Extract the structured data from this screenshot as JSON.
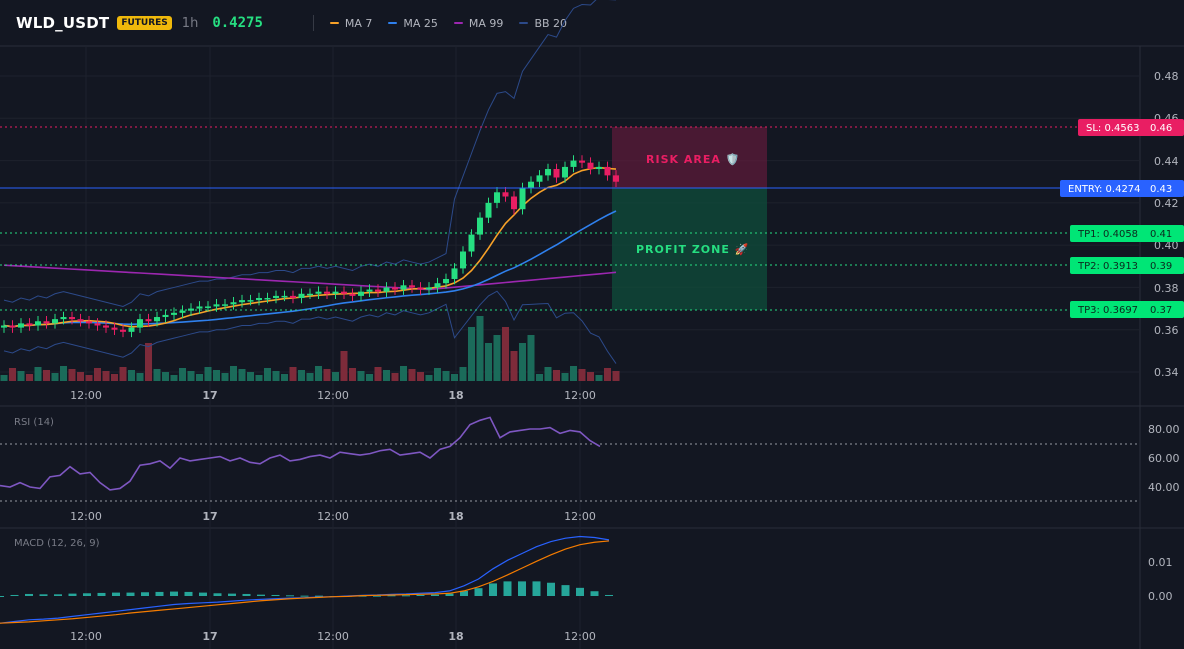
{
  "header": {
    "symbol": "WLD_USDT",
    "badge": "FUTURES",
    "timeframe": "1h",
    "price": "0.4275",
    "legend": [
      {
        "label": "MA 7",
        "color": "#f7a128"
      },
      {
        "label": "MA 25",
        "color": "#2f80ed"
      },
      {
        "label": "MA 99",
        "color": "#9c27b0"
      },
      {
        "label": "BB 20",
        "color": "#2c4a8a"
      }
    ]
  },
  "price_axis": {
    "ticks": [
      "0.48",
      "0.46",
      "0.44",
      "0.42",
      "0.40",
      "0.38",
      "0.36",
      "0.34"
    ],
    "values": [
      0.48,
      0.46,
      0.44,
      0.42,
      0.4,
      0.38,
      0.36,
      0.34
    ]
  },
  "time_axis": {
    "labels": [
      "12:00",
      "17",
      "12:00",
      "18",
      "12:00"
    ]
  },
  "trade_levels": {
    "sl": {
      "label": "SL: 0.4563",
      "short": "0.46",
      "value": 0.4563,
      "color": "#e91e63"
    },
    "entry": {
      "label": "ENTRY: 0.4274",
      "short": "0.43",
      "value": 0.4274,
      "color": "#2962ff"
    },
    "tp1": {
      "label": "TP1: 0.4058",
      "short": "0.41",
      "value": 0.4058,
      "color": "#00c853"
    },
    "tp2": {
      "label": "TP2: 0.3913",
      "short": "0.39",
      "value": 0.3913,
      "color": "#00c853"
    },
    "tp3": {
      "label": "TP3: 0.3697",
      "short": "0.37",
      "value": 0.3697,
      "color": "#00c853"
    }
  },
  "zones": {
    "risk": "RISK AREA 🛡️",
    "profit": "PROFIT ZONE 🚀"
  },
  "rsi": {
    "title": "RSI (14)",
    "ticks": [
      "80.00",
      "60.00",
      "40.00"
    ],
    "values": [
      80,
      60,
      40
    ],
    "upper": 70,
    "lower": 30
  },
  "macd": {
    "title": "MACD (12, 26, 9)",
    "ticks": [
      "0.01",
      "0.00"
    ],
    "values": [
      0.01,
      0.0
    ]
  },
  "colors": {
    "up": "#26de81",
    "down": "#e91e63",
    "up_vol": "#1b6b5a",
    "down_vol": "#7d2b3a",
    "rsi_line": "#7e57c2",
    "macd_line": "#2962ff",
    "signal_line": "#f57c00",
    "hist": "#26a69a"
  },
  "chart_data": {
    "type": "candlestick",
    "closes": [
      0.362,
      0.361,
      0.363,
      0.362,
      0.364,
      0.363,
      0.365,
      0.366,
      0.365,
      0.364,
      0.363,
      0.362,
      0.361,
      0.36,
      0.359,
      0.361,
      0.365,
      0.364,
      0.366,
      0.367,
      0.368,
      0.369,
      0.37,
      0.371,
      0.371,
      0.372,
      0.372,
      0.373,
      0.374,
      0.374,
      0.375,
      0.375,
      0.376,
      0.376,
      0.375,
      0.377,
      0.377,
      0.378,
      0.377,
      0.378,
      0.377,
      0.376,
      0.378,
      0.379,
      0.378,
      0.38,
      0.379,
      0.381,
      0.38,
      0.379,
      0.38,
      0.382,
      0.384,
      0.389,
      0.397,
      0.405,
      0.413,
      0.42,
      0.425,
      0.423,
      0.417,
      0.427,
      0.43,
      0.433,
      0.436,
      0.432,
      0.437,
      0.44,
      0.439,
      0.436,
      0.437,
      0.433,
      0.43
    ],
    "rsi_values": [
      41,
      40,
      43,
      40,
      39,
      47,
      48,
      54,
      49,
      50,
      43,
      38,
      39,
      44,
      55,
      56,
      58,
      53,
      60,
      58,
      59,
      60,
      61,
      58,
      60,
      57,
      56,
      60,
      62,
      58,
      59,
      61,
      62,
      60,
      64,
      63,
      62,
      63,
      65,
      66,
      62,
      63,
      64,
      60,
      66,
      68,
      74,
      83,
      86,
      88,
      74,
      78,
      79,
      80,
      80,
      81,
      77,
      79,
      78,
      72,
      68
    ],
    "macd_values": [
      -0.008,
      -0.0075,
      -0.007,
      -0.0068,
      -0.0065,
      -0.006,
      -0.0055,
      -0.005,
      -0.0045,
      -0.004,
      -0.0035,
      -0.003,
      -0.0025,
      -0.0022,
      -0.002,
      -0.0018,
      -0.0015,
      -0.0012,
      -0.001,
      -0.0008,
      -0.0006,
      -0.0005,
      -0.0003,
      -0.0002,
      0.0,
      0.0002,
      0.0003,
      0.0005,
      0.0006,
      0.0008,
      0.001,
      0.0015,
      0.003,
      0.005,
      0.008,
      0.0105,
      0.0125,
      0.0145,
      0.016,
      0.017,
      0.0175,
      0.0172,
      0.0165
    ],
    "signal_values": [
      -0.008,
      -0.0078,
      -0.0076,
      -0.0073,
      -0.007,
      -0.0067,
      -0.0063,
      -0.0059,
      -0.0055,
      -0.005,
      -0.0046,
      -0.0042,
      -0.0038,
      -0.0034,
      -0.003,
      -0.0026,
      -0.0022,
      -0.0018,
      -0.0014,
      -0.0011,
      -0.0008,
      -0.0006,
      -0.0004,
      -0.0002,
      -0.0001,
      0.0001,
      0.0002,
      0.0003,
      0.0004,
      0.0005,
      0.0006,
      0.0008,
      0.0015,
      0.0027,
      0.0043,
      0.0062,
      0.0082,
      0.0102,
      0.0121,
      0.0138,
      0.0151,
      0.0158,
      0.0162
    ]
  }
}
